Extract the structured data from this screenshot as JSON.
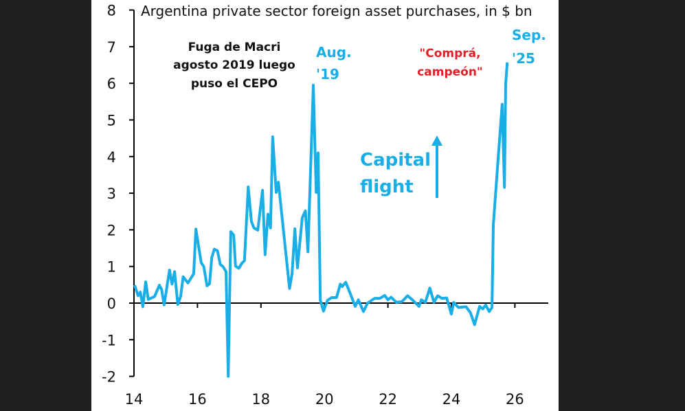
{
  "chart_data": {
    "type": "line",
    "title": "Argentina private sector foreign asset purchases, in $ bn",
    "xlabel": "",
    "ylabel": "",
    "xlim": [
      14,
      27.05
    ],
    "ylim": [
      -2,
      8
    ],
    "x_ticks": [
      "14",
      "16",
      "18",
      "20",
      "22",
      "24",
      "26"
    ],
    "y_ticks": [
      "-2",
      "-1",
      "0",
      "1",
      "2",
      "3",
      "4",
      "5",
      "6",
      "7",
      "8"
    ],
    "grid": false,
    "line_color": "#19aee6",
    "series": [
      {
        "x": [
          14.02,
          14.13,
          14.2,
          14.28,
          14.37,
          14.45,
          14.65,
          14.8,
          14.87,
          14.95,
          15.12,
          15.2,
          15.28,
          15.38,
          15.47,
          15.55,
          15.7,
          15.88,
          15.95,
          16.12,
          16.2,
          16.3,
          16.38,
          16.45,
          16.53,
          16.63,
          16.72,
          16.8,
          16.9,
          16.97,
          17.05,
          17.14,
          17.2,
          17.3,
          17.4,
          17.48,
          17.6,
          17.7,
          17.78,
          17.9,
          18.05,
          18.13,
          18.22,
          18.3,
          18.37,
          18.48,
          18.55,
          18.9,
          18.98,
          19.07,
          19.15,
          19.3,
          19.4,
          19.48,
          19.65,
          19.74,
          19.8,
          19.87,
          19.97,
          20.1,
          20.23,
          20.38,
          20.5,
          20.56,
          20.67,
          20.86,
          20.97,
          21.07,
          21.23,
          21.36,
          21.58,
          21.75,
          21.9,
          22.0,
          22.1,
          22.27,
          22.44,
          22.62,
          22.77,
          22.98,
          23.05,
          23.18,
          23.32,
          23.45,
          23.57,
          23.7,
          23.85,
          24.0,
          24.07,
          24.22,
          24.46,
          24.6,
          24.73,
          24.89,
          24.99,
          25.08,
          25.19,
          25.28,
          25.32,
          25.47,
          25.6,
          25.67,
          25.71,
          25.76
        ],
        "y": [
          0.49,
          0.2,
          0.3,
          -0.1,
          0.58,
          0.1,
          0.18,
          0.49,
          0.37,
          -0.05,
          0.9,
          0.52,
          0.86,
          -0.04,
          0.18,
          0.72,
          0.55,
          0.8,
          2.02,
          1.1,
          1.0,
          0.47,
          0.53,
          1.24,
          1.47,
          1.43,
          1.05,
          1.0,
          0.86,
          -2.0,
          1.95,
          1.86,
          1.01,
          0.95,
          1.09,
          1.16,
          3.17,
          2.23,
          2.05,
          1.99,
          3.08,
          1.32,
          2.43,
          2.05,
          4.54,
          3.02,
          3.3,
          0.4,
          0.8,
          2.03,
          0.96,
          2.33,
          2.52,
          1.4,
          5.95,
          3.02,
          4.1,
          0.08,
          -0.22,
          0.08,
          0.15,
          0.15,
          0.52,
          0.45,
          0.57,
          0.16,
          -0.09,
          0.09,
          -0.23,
          0.0,
          0.13,
          0.13,
          0.21,
          0.09,
          0.16,
          0.02,
          0.04,
          0.2,
          0.09,
          -0.09,
          0.09,
          0.02,
          0.41,
          0.02,
          0.2,
          0.13,
          0.14,
          -0.3,
          0.02,
          -0.12,
          -0.1,
          -0.26,
          -0.59,
          -0.09,
          -0.16,
          -0.05,
          -0.23,
          -0.12,
          2.13,
          3.91,
          5.43,
          3.16,
          5.99,
          6.57
        ]
      }
    ],
    "annotations": {
      "macri": [
        "Fuga de Macri",
        "agosto 2019 luego",
        "puso el CEPO"
      ],
      "aug19": [
        "Aug.",
        "'19"
      ],
      "compra": [
        "\"Comprá,",
        "campeón\""
      ],
      "sep25": [
        "Sep.",
        "'25"
      ],
      "capital_flight": [
        "Capital",
        "flight"
      ]
    },
    "colors": {
      "line": "#19aee6",
      "red_annotation": "#e21f26",
      "axis": "#000000"
    }
  }
}
